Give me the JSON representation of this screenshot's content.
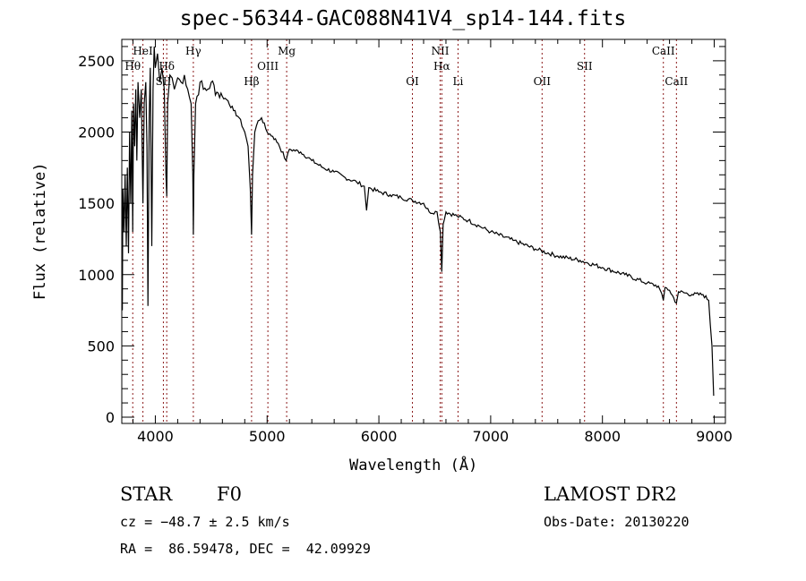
{
  "chart_data": {
    "type": "line",
    "title": "spec-56344-GAC088N41V4_sp14-144.fits",
    "xlabel": "Wavelength (Å)",
    "ylabel": "Flux (relative)",
    "xlim": [
      3700,
      9100
    ],
    "ylim": [
      -44,
      2650
    ],
    "xticks": [
      4000,
      5000,
      6000,
      7000,
      8000,
      9000
    ],
    "yticks": [
      0,
      500,
      1000,
      1500,
      2000,
      2500
    ],
    "grid": false,
    "line_color": "#000000",
    "marker_color": "#8b1a1a",
    "lines": [
      {
        "label": "Hθ",
        "wavelength": 3798
      },
      {
        "label": "HeI",
        "wavelength": 3889
      },
      {
        "label": "Hδ",
        "wavelength": 4102
      },
      {
        "label": "SII",
        "wavelength": 4072
      },
      {
        "label": "Hγ",
        "wavelength": 4340
      },
      {
        "label": "Hβ",
        "wavelength": 4861
      },
      {
        "label": "OIII",
        "wavelength": 5007
      },
      {
        "label": "Mg",
        "wavelength": 5175
      },
      {
        "label": "OI",
        "wavelength": 6300
      },
      {
        "label": "NII",
        "wavelength": 6548
      },
      {
        "label": "Hα",
        "wavelength": 6563
      },
      {
        "label": "Li",
        "wavelength": 6708
      },
      {
        "label": "OII",
        "wavelength": 7460
      },
      {
        "label": "SII",
        "wavelength": 7840
      },
      {
        "label": "CaII",
        "wavelength": 8545
      },
      {
        "label": "CaII",
        "wavelength": 8662
      }
    ],
    "series": [
      {
        "name": "spectrum",
        "points": [
          [
            3705,
            750
          ],
          [
            3710,
            1600
          ],
          [
            3720,
            1300
          ],
          [
            3730,
            1700
          ],
          [
            3740,
            1200
          ],
          [
            3750,
            1750
          ],
          [
            3760,
            1150
          ],
          [
            3770,
            2000
          ],
          [
            3780,
            1500
          ],
          [
            3790,
            2150
          ],
          [
            3798,
            1300
          ],
          [
            3805,
            2200
          ],
          [
            3815,
            1900
          ],
          [
            3825,
            2300
          ],
          [
            3835,
            1800
          ],
          [
            3845,
            2350
          ],
          [
            3860,
            2100
          ],
          [
            3875,
            2300
          ],
          [
            3889,
            1500
          ],
          [
            3900,
            2200
          ],
          [
            3915,
            2350
          ],
          [
            3925,
            1900
          ],
          [
            3934,
            780
          ],
          [
            3945,
            2100
          ],
          [
            3955,
            2450
          ],
          [
            3968,
            1200
          ],
          [
            3980,
            2300
          ],
          [
            3990,
            2600
          ],
          [
            4000,
            2450
          ],
          [
            4020,
            2550
          ],
          [
            4040,
            2350
          ],
          [
            4060,
            2450
          ],
          [
            4080,
            2300
          ],
          [
            4095,
            1700
          ],
          [
            4102,
            1550
          ],
          [
            4110,
            2200
          ],
          [
            4130,
            2400
          ],
          [
            4150,
            2380
          ],
          [
            4170,
            2300
          ],
          [
            4200,
            2380
          ],
          [
            4230,
            2350
          ],
          [
            4260,
            2400
          ],
          [
            4290,
            2300
          ],
          [
            4320,
            2200
          ],
          [
            4335,
            1700
          ],
          [
            4340,
            1280
          ],
          [
            4345,
            1700
          ],
          [
            4360,
            2200
          ],
          [
            4400,
            2350
          ],
          [
            4430,
            2300
          ],
          [
            4470,
            2300
          ],
          [
            4500,
            2350
          ],
          [
            4550,
            2280
          ],
          [
            4600,
            2250
          ],
          [
            4650,
            2220
          ],
          [
            4700,
            2150
          ],
          [
            4750,
            2100
          ],
          [
            4800,
            2000
          ],
          [
            4830,
            1900
          ],
          [
            4850,
            1600
          ],
          [
            4861,
            1280
          ],
          [
            4870,
            1700
          ],
          [
            4890,
            2000
          ],
          [
            4920,
            2080
          ],
          [
            4950,
            2100
          ],
          [
            5000,
            2000
          ],
          [
            5050,
            1970
          ],
          [
            5100,
            1920
          ],
          [
            5170,
            1800
          ],
          [
            5200,
            1880
          ],
          [
            5300,
            1860
          ],
          [
            5400,
            1800
          ],
          [
            5500,
            1750
          ],
          [
            5600,
            1720
          ],
          [
            5700,
            1680
          ],
          [
            5800,
            1650
          ],
          [
            5870,
            1620
          ],
          [
            5890,
            1450
          ],
          [
            5910,
            1610
          ],
          [
            6000,
            1580
          ],
          [
            6100,
            1560
          ],
          [
            6200,
            1540
          ],
          [
            6300,
            1520
          ],
          [
            6400,
            1500
          ],
          [
            6450,
            1440
          ],
          [
            6520,
            1440
          ],
          [
            6550,
            1300
          ],
          [
            6563,
            1020
          ],
          [
            6575,
            1350
          ],
          [
            6600,
            1440
          ],
          [
            6700,
            1410
          ],
          [
            6800,
            1380
          ],
          [
            6900,
            1340
          ],
          [
            7000,
            1300
          ],
          [
            7200,
            1240
          ],
          [
            7400,
            1180
          ],
          [
            7600,
            1130
          ],
          [
            7800,
            1100
          ],
          [
            8000,
            1050
          ],
          [
            8200,
            1000
          ],
          [
            8400,
            940
          ],
          [
            8500,
            920
          ],
          [
            8545,
            820
          ],
          [
            8560,
            910
          ],
          [
            8600,
            890
          ],
          [
            8662,
            800
          ],
          [
            8680,
            880
          ],
          [
            8800,
            860
          ],
          [
            8900,
            860
          ],
          [
            8950,
            820
          ],
          [
            8980,
            500
          ],
          [
            8995,
            150
          ]
        ]
      }
    ]
  },
  "info": {
    "object_class": "STAR",
    "subclass": "F0",
    "cz": "cz = −48.7 ± 2.5 km/s",
    "coords": "RA =  86.59478, DEC =  42.09929",
    "survey": "LAMOST DR2",
    "obs_date": "Obs-Date: 20130220"
  }
}
